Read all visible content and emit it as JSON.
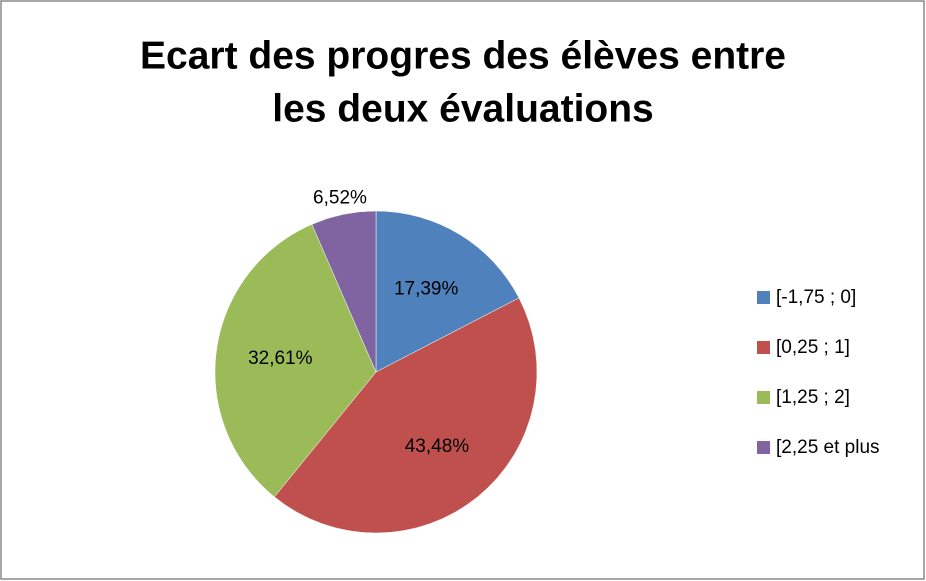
{
  "chart_data": {
    "type": "pie",
    "title": [
      "Ecart des progres des élèves entre",
      "les deux évaluations"
    ],
    "categories": [
      "[-1,75 ; 0]",
      "[0,25 ; 1]",
      "[1,25 ; 2]",
      "[2,25 et plus"
    ],
    "values": [
      17.39,
      43.48,
      32.61,
      6.52
    ],
    "value_labels": [
      "17,39%",
      "43,48%",
      "32,61%",
      "6,52%"
    ],
    "colors": [
      "#4f81bd",
      "#c0504d",
      "#9bbb59",
      "#8064a2"
    ],
    "legend": "right"
  }
}
